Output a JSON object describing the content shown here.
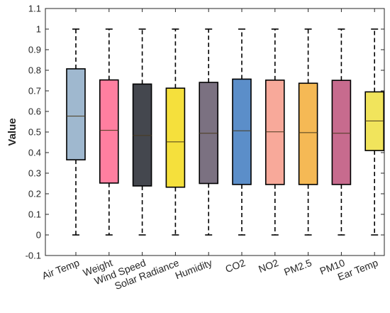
{
  "chart_data": {
    "type": "box",
    "title": "",
    "xlabel": "",
    "ylabel": "Value",
    "ylim": [
      -0.1,
      1.1
    ],
    "yticks": [
      -0.1,
      0,
      0.1,
      0.2,
      0.3,
      0.4,
      0.5,
      0.6,
      0.7,
      0.8,
      0.9,
      1,
      1.1
    ],
    "ytick_labels": [
      "-0.1",
      "0",
      "0.1",
      "0.2",
      "0.3",
      "0.4",
      "0.5",
      "0.6",
      "0.7",
      "0.8",
      "0.9",
      "1",
      "1.1"
    ],
    "grid": false,
    "categories": [
      "Air Temp",
      "Weight",
      "Wind Speed",
      "Solar Radiance",
      "Humidity",
      "CO2",
      "NO2",
      "PM2.5",
      "PM10",
      "Ear Temp"
    ],
    "boxes": [
      {
        "category": "Air Temp",
        "min": 0,
        "q1": 0.365,
        "median": 0.577,
        "q3": 0.807,
        "max": 1,
        "color": "#9fb8cf"
      },
      {
        "category": "Weight",
        "min": 0,
        "q1": 0.252,
        "median": 0.508,
        "q3": 0.753,
        "max": 1,
        "color": "#ff7fa0"
      },
      {
        "category": "Wind Speed",
        "min": 0,
        "q1": 0.238,
        "median": 0.483,
        "q3": 0.733,
        "max": 1,
        "color": "#44474e"
      },
      {
        "category": "Solar Radiance",
        "min": 0,
        "q1": 0.232,
        "median": 0.452,
        "q3": 0.713,
        "max": 1,
        "color": "#f5e03c"
      },
      {
        "category": "Humidity",
        "min": 0,
        "q1": 0.25,
        "median": 0.494,
        "q3": 0.741,
        "max": 1,
        "color": "#7b7181"
      },
      {
        "category": "CO2",
        "min": 0,
        "q1": 0.245,
        "median": 0.506,
        "q3": 0.757,
        "max": 1,
        "color": "#5b8ec9"
      },
      {
        "category": "NO2",
        "min": 0,
        "q1": 0.245,
        "median": 0.501,
        "q3": 0.752,
        "max": 1,
        "color": "#f8a99a"
      },
      {
        "category": "PM2.5",
        "min": 0,
        "q1": 0.245,
        "median": 0.497,
        "q3": 0.737,
        "max": 1,
        "color": "#f5b955"
      },
      {
        "category": "PM10",
        "min": 0,
        "q1": 0.245,
        "median": 0.494,
        "q3": 0.751,
        "max": 1,
        "color": "#c76b8e"
      },
      {
        "category": "Ear Temp",
        "min": 0,
        "q1": 0.41,
        "median": 0.554,
        "q3": 0.695,
        "max": 1,
        "color": "#f1e45c"
      }
    ]
  }
}
